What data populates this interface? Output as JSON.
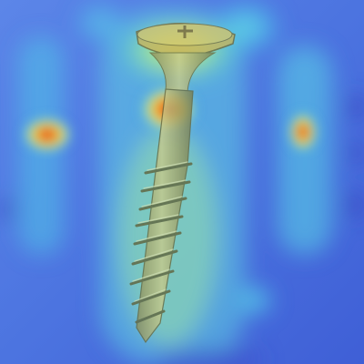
{
  "image": {
    "subject": "countersunk-screw",
    "overlay": "attention-heatmap",
    "colormap": [
      "#3b4cc0",
      "#39b7e6",
      "#7ee0c2",
      "#e8e04a",
      "#f08a2a",
      "#d7191c"
    ]
  }
}
